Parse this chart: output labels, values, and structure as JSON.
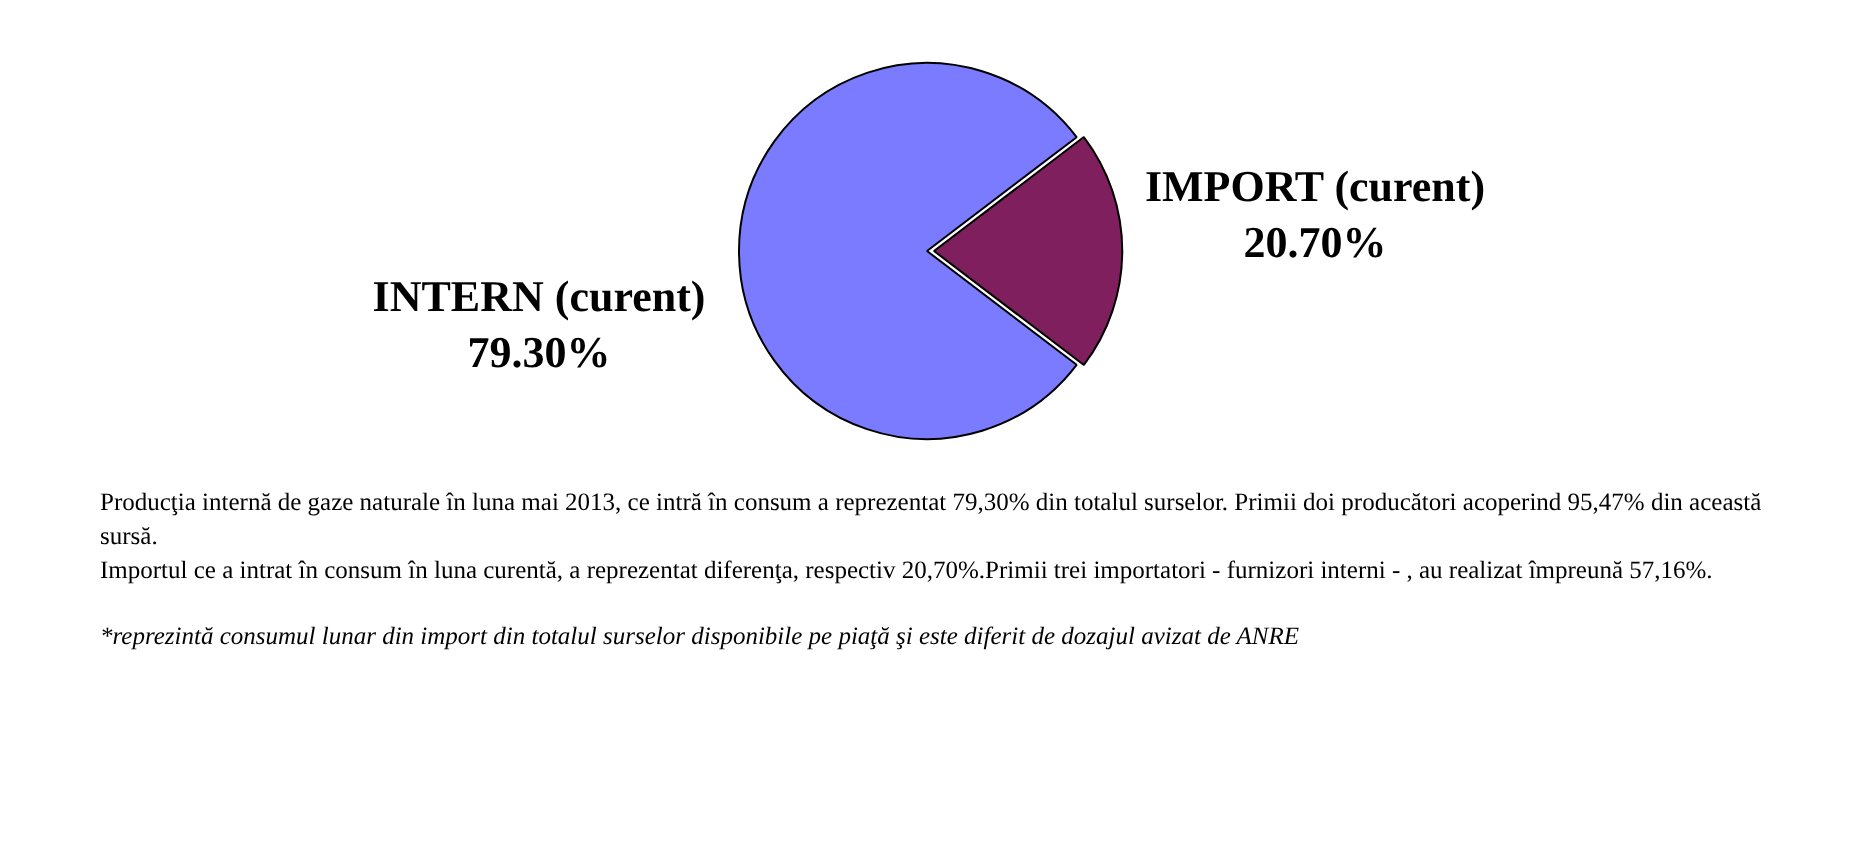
{
  "chart_data": {
    "type": "pie",
    "categories": [
      "INTERN (curent)",
      "IMPORT (curent)"
    ],
    "values": [
      79.3,
      20.7
    ],
    "colors": [
      "#7b7bff",
      "#801f5e"
    ],
    "value_labels": [
      "79.30%",
      "20.70%"
    ],
    "annotations": [
      "Producţia internă de gaze naturale în luna mai 2013, ce intră în consum a reprezentat 79,30% din totalul surselor. Primii doi producători acoperind 95,47% din această sursă.",
      "Importul ce a intrat în consum în luna curentă,  a reprezentat diferenţa, respectiv 20,70%.Primii trei importatori - furnizori interni - , au realizat împreună 57,16%.",
      "*reprezintă consumul lunar din import din totalul surselor disponibile pe piaţă şi este diferit de dozajul avizat de ANRE"
    ]
  }
}
